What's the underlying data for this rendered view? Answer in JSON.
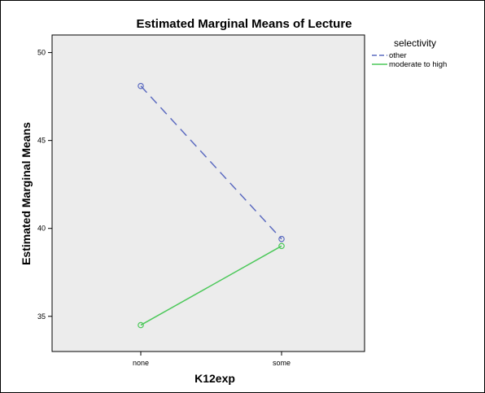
{
  "chart_data": {
    "type": "line",
    "title": "Estimated Marginal Means of Lecture",
    "xlabel": "K12exp",
    "ylabel": "Estimated Marginal Means",
    "categories": [
      "none",
      "some"
    ],
    "ylim": [
      33,
      51
    ],
    "yticks": [
      35,
      40,
      45,
      50
    ],
    "grid": false,
    "legend": {
      "title": "selectivity",
      "position": "right"
    },
    "series": [
      {
        "name": "other",
        "values": [
          48.1,
          39.4
        ],
        "color": "#5c6bc0",
        "style": "dashed",
        "marker": "circle"
      },
      {
        "name": "moderate to high",
        "values": [
          34.5,
          39.0
        ],
        "color": "#4cc85a",
        "style": "solid",
        "marker": "circle"
      }
    ]
  },
  "colors": {
    "plot_background": "#ececec",
    "frame": "#000000"
  }
}
